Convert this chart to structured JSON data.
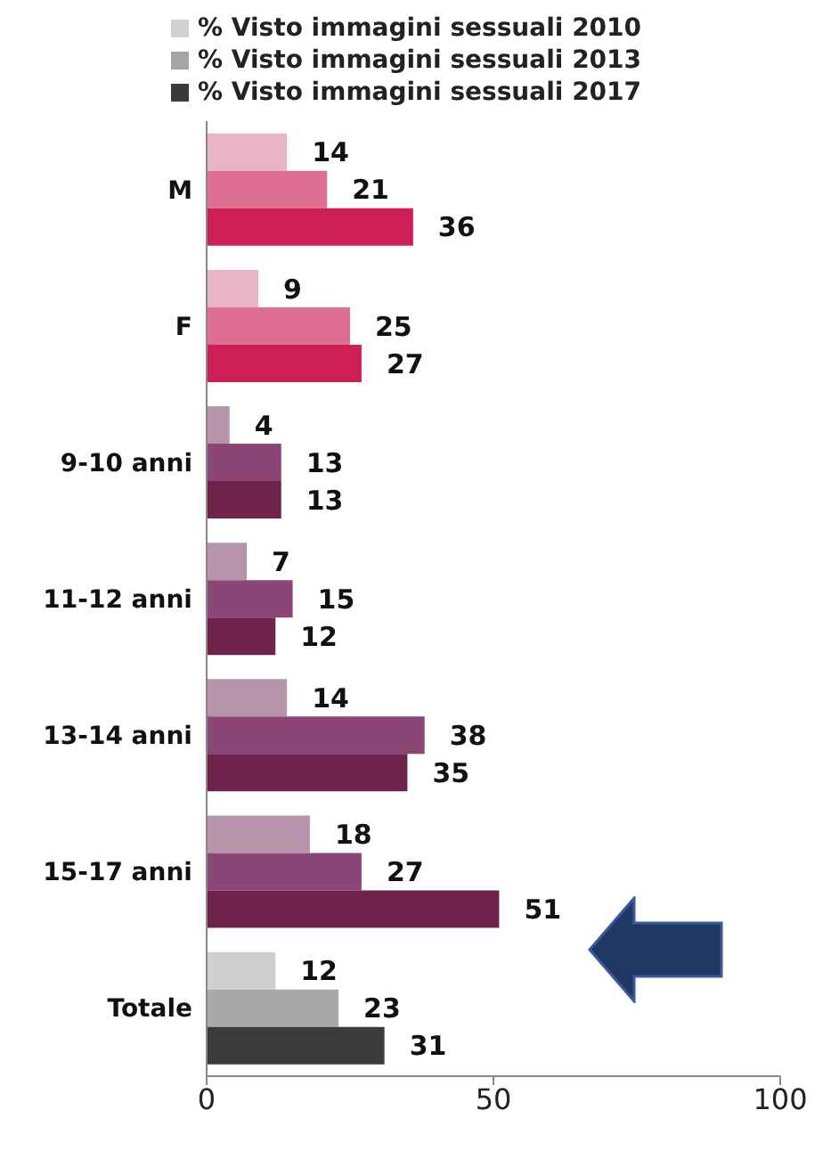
{
  "chart_data": {
    "type": "bar",
    "orientation": "horizontal",
    "categories": [
      "M",
      "F",
      "9-10 anni",
      "11-12 anni",
      "13-14 anni",
      "15-17 anni",
      "Totale"
    ],
    "series": [
      {
        "name": "% Visto immagini sessuali 2010",
        "color": "#d0d0d0",
        "values": [
          14,
          9,
          4,
          7,
          14,
          18,
          12
        ],
        "colors": [
          "#e8b4c8",
          "#e8b4c8",
          "#b894aa",
          "#b894aa",
          "#b894aa",
          "#b894aa",
          "#cfcfcf"
        ]
      },
      {
        "name": "% Visto immagini sessuali 2013",
        "color": "#a6a6a6",
        "values": [
          21,
          25,
          13,
          15,
          38,
          27,
          23
        ],
        "colors": [
          "#dc6f92",
          "#dc6f92",
          "#8c4675",
          "#8c4675",
          "#8c4675",
          "#8c4675",
          "#a9a9a9"
        ]
      },
      {
        "name": "% Visto immagini sessuali 2017",
        "color": "#3a3a3a",
        "values": [
          36,
          27,
          13,
          12,
          35,
          51,
          31
        ],
        "colors": [
          "#cc1f56",
          "#cc1f56",
          "#6e224c",
          "#6e224c",
          "#6e224c",
          "#6e224c",
          "#3b3b3b"
        ]
      }
    ],
    "xlim": [
      0,
      100
    ],
    "xticks": [
      0,
      50,
      100
    ],
    "data_labels": true,
    "legend": "top",
    "grid": false
  }
}
